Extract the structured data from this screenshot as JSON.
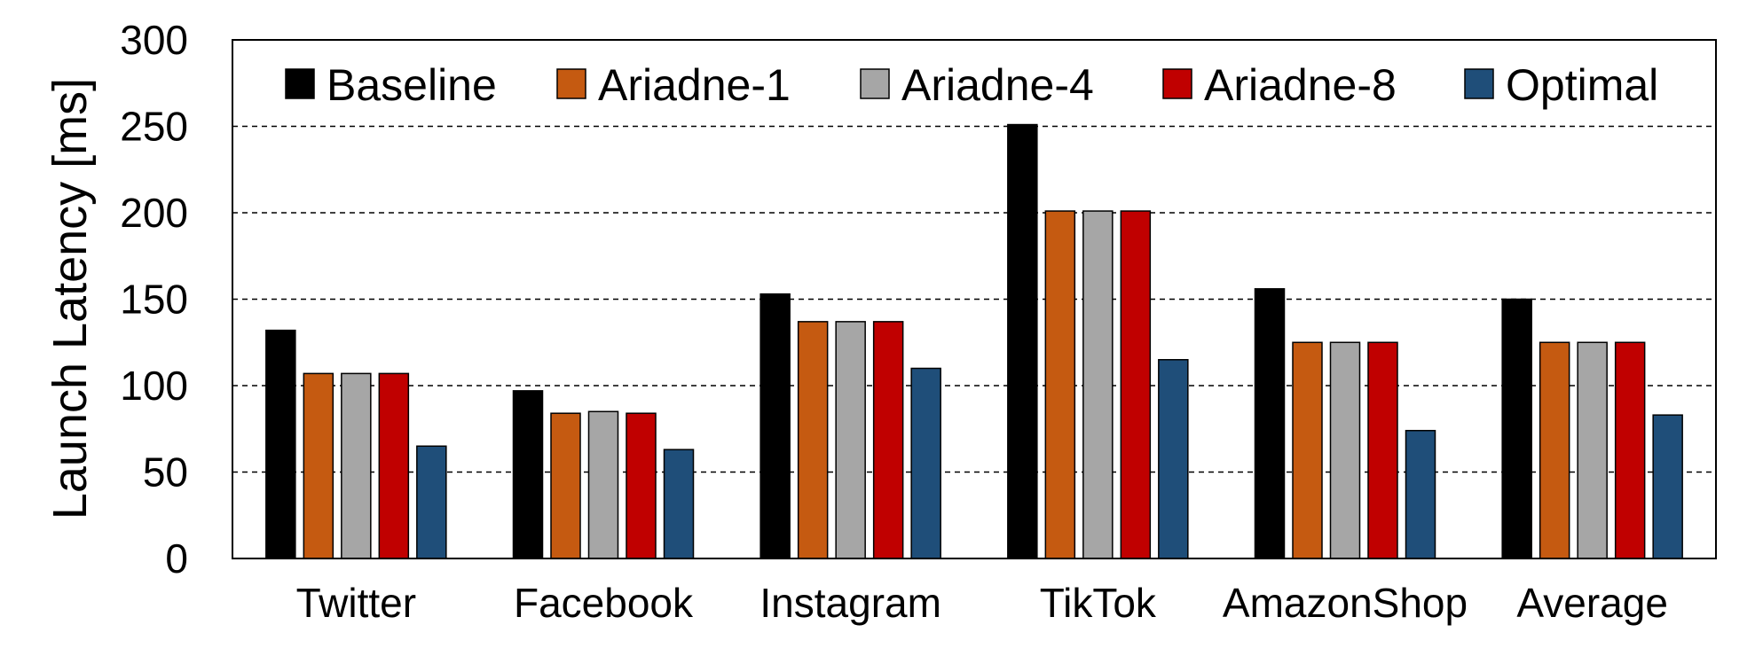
{
  "chart_data": {
    "type": "bar",
    "title": "",
    "xlabel": "",
    "ylabel": "Launch Latency [ms]",
    "ylim": [
      0,
      300
    ],
    "yticks": [
      0,
      50,
      100,
      150,
      200,
      250,
      300
    ],
    "grid": "horizontal-dashed",
    "legend_position": "top",
    "categories": [
      "Twitter",
      "Facebook",
      "Instagram",
      "TikTok",
      "AmazonShop",
      "Average"
    ],
    "series": [
      {
        "name": "Baseline",
        "color": "#000000",
        "values": [
          132,
          97,
          153,
          251,
          156,
          150
        ]
      },
      {
        "name": "Ariadne-1",
        "color": "#c55a11",
        "values": [
          107,
          84,
          137,
          201,
          125,
          125
        ]
      },
      {
        "name": "Ariadne-4",
        "color": "#a6a6a6",
        "values": [
          107,
          85,
          137,
          201,
          125,
          125
        ]
      },
      {
        "name": "Ariadne-8",
        "color": "#c00000",
        "values": [
          107,
          84,
          137,
          201,
          125,
          125
        ]
      },
      {
        "name": "Optimal",
        "color": "#1f4e79",
        "values": [
          65,
          63,
          110,
          115,
          74,
          83
        ]
      }
    ]
  }
}
